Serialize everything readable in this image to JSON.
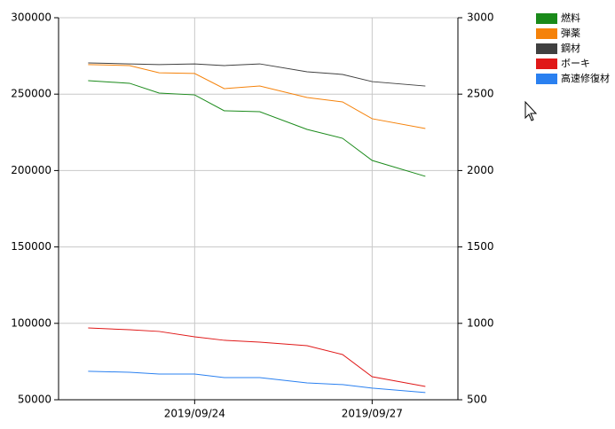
{
  "chart_data": {
    "type": "line",
    "x": [
      22.2,
      22.9,
      23.4,
      24.0,
      24.5,
      25.1,
      25.9,
      26.5,
      27.0,
      27.9
    ],
    "xlim": [
      21.7,
      28.45
    ],
    "xticks": [
      {
        "value": 24,
        "label": "2019/09/24"
      },
      {
        "value": 27,
        "label": "2019/09/27"
      }
    ],
    "ylim": [
      50000,
      300000
    ],
    "yticks": [
      50000,
      100000,
      150000,
      200000,
      250000,
      300000
    ],
    "y2lim": [
      500,
      3000
    ],
    "y2ticks": [
      500,
      1000,
      1500,
      2000,
      2500,
      3000
    ],
    "grid": true,
    "legend": "right",
    "series": [
      {
        "name": "燃料",
        "color": "#1a8a1a",
        "values": [
          258800,
          257100,
          250700,
          249500,
          239100,
          238500,
          226900,
          221100,
          206600,
          196200
        ]
      },
      {
        "name": "弾薬",
        "color": "#f5820a",
        "values": [
          269300,
          268700,
          264000,
          263500,
          253600,
          255300,
          247800,
          244900,
          233900,
          227500
        ]
      },
      {
        "name": "鋼材",
        "color": "#404040",
        "values": [
          270400,
          269800,
          269300,
          269800,
          268700,
          269800,
          264600,
          262900,
          258200,
          255300
        ]
      },
      {
        "name": "ボーキ",
        "color": "#e01818",
        "values": [
          97000,
          95800,
          94700,
          91200,
          88900,
          87700,
          85400,
          79600,
          65100,
          58700
        ]
      },
      {
        "name": "高速修復材",
        "color": "#2a80f0",
        "axis": "y2",
        "values": [
          686,
          680,
          668,
          668,
          645,
          645,
          610,
          599,
          576,
          547
        ]
      }
    ]
  }
}
